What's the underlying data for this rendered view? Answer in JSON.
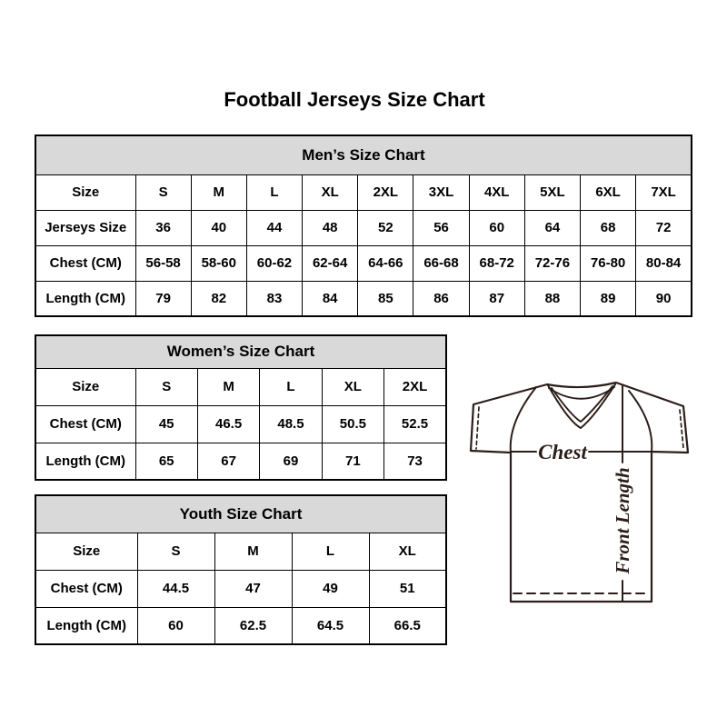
{
  "page": {
    "title": "Football Jerseys Size Chart"
  },
  "chart_data": [
    {
      "type": "table",
      "title": "Men’s Size Chart",
      "rows": [
        [
          "Size",
          "S",
          "M",
          "L",
          "XL",
          "2XL",
          "3XL",
          "4XL",
          "5XL",
          "6XL",
          "7XL"
        ],
        [
          "Jerseys Size",
          "36",
          "40",
          "44",
          "48",
          "52",
          "56",
          "60",
          "64",
          "68",
          "72"
        ],
        [
          "Chest (CM)",
          "56-58",
          "58-60",
          "60-62",
          "62-64",
          "64-66",
          "66-68",
          "68-72",
          "72-76",
          "76-80",
          "80-84"
        ],
        [
          "Length (CM)",
          "79",
          "82",
          "83",
          "84",
          "85",
          "86",
          "87",
          "88",
          "89",
          "90"
        ]
      ]
    },
    {
      "type": "table",
      "title": "Women’s Size Chart",
      "rows": [
        [
          "Size",
          "S",
          "M",
          "L",
          "XL",
          "2XL"
        ],
        [
          "Chest (CM)",
          "45",
          "46.5",
          "48.5",
          "50.5",
          "52.5"
        ],
        [
          "Length (CM)",
          "65",
          "67",
          "69",
          "71",
          "73"
        ]
      ]
    },
    {
      "type": "table",
      "title": "Youth Size Chart",
      "rows": [
        [
          "Size",
          "S",
          "M",
          "L",
          "XL"
        ],
        [
          "Chest (CM)",
          "44.5",
          "47",
          "49",
          "51"
        ],
        [
          "Length (CM)",
          "60",
          "62.5",
          "64.5",
          "66.5"
        ]
      ]
    }
  ],
  "diagram": {
    "chest_label": "Chest",
    "front_length_label": "Front Length"
  },
  "colors": {
    "background": "#ffffff",
    "table_header_bg": "#d9d9d9",
    "table_border": "#000000",
    "text": "#000000",
    "diagram_stroke": "#2b1e19"
  }
}
